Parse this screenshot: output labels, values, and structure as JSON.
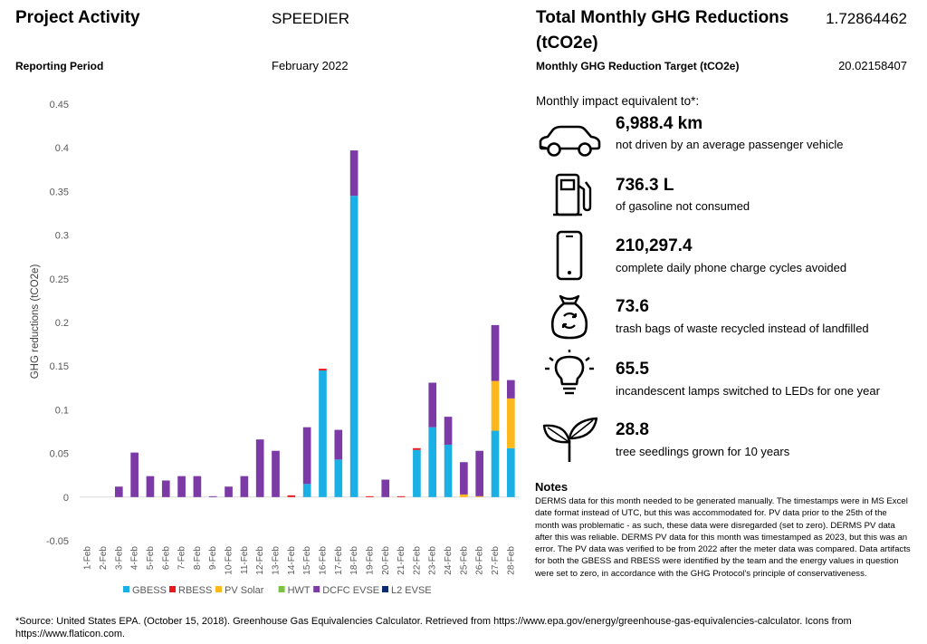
{
  "header": {
    "project_activity_label": "Project Activity",
    "project_activity_value": "SPEEDIER",
    "reporting_period_label": "Reporting Period",
    "reporting_period_value": "February 2022",
    "ghg_title_line1": "Total Monthly GHG Reductions",
    "ghg_title_line2": "(tCO2e)",
    "ghg_total": "1.72864462",
    "target_label": "Monthly GHG Reduction Target (tCO2e)",
    "target_value": "20.02158407"
  },
  "equivalents": {
    "heading": "Monthly impact equivalent to*:",
    "items": [
      {
        "icon": "car-icon",
        "value": "6,988.4 km",
        "desc": "not driven by an average passenger vehicle"
      },
      {
        "icon": "fuel-pump-icon",
        "value": "736.3 L",
        "desc": "of gasoline not consumed"
      },
      {
        "icon": "smartphone-icon",
        "value": "210,297.4",
        "desc": "complete daily phone charge cycles avoided"
      },
      {
        "icon": "recycle-bag-icon",
        "value": "73.6",
        "desc": "trash bags of waste recycled instead of landfilled"
      },
      {
        "icon": "lightbulb-icon",
        "value": "65.5",
        "desc": "incandescent lamps switched to LEDs for one year"
      },
      {
        "icon": "seedling-icon",
        "value": "28.8",
        "desc": "tree seedlings grown for 10 years"
      }
    ]
  },
  "notes": {
    "title": "Notes",
    "body": "DERMS data for this month needed to be generated manually. The timestamps were in MS Excel date format instead of UTC, but this was accommodated for. PV data prior to the 25th of the month was problematic - as such, these data were disregarded (set to zero). DERMS PV data after this was reliable. DERMS PV data for this month was timestamped as 2023, but this was an error. The PV data was verified to be from 2022 after the meter data was compared. Data artifacts for both the GBESS and RBESS were identified by the team and the energy values in question were set to zero, in accordance with the GHG Protocol's principle of conservativeness."
  },
  "footer": "*Source: United States EPA. (October 15, 2018). Greenhouse Gas Equivalencies Calculator. Retrieved from https://www.epa.gov/energy/greenhouse-gas-equivalencies-calculator. Icons from https://www.flaticon.com.",
  "chart_data": {
    "type": "bar",
    "stacked": true,
    "ylabel": "GHG reductions (tCO2e)",
    "ylim": [
      -0.05,
      0.45
    ],
    "yticks": [
      "-0.05",
      "0",
      "0.05",
      "0.1",
      "0.15",
      "0.2",
      "0.25",
      "0.3",
      "0.35",
      "0.4",
      "0.45"
    ],
    "grid": false,
    "legend_position": "bottom",
    "categories": [
      "1-Feb",
      "2-Feb",
      "3-Feb",
      "4-Feb",
      "5-Feb",
      "6-Feb",
      "7-Feb",
      "8-Feb",
      "9-Feb",
      "10-Feb",
      "11-Feb",
      "12-Feb",
      "13-Feb",
      "14-Feb",
      "15-Feb",
      "16-Feb",
      "17-Feb",
      "18-Feb",
      "19-Feb",
      "20-Feb",
      "21-Feb",
      "22-Feb",
      "23-Feb",
      "24-Feb",
      "25-Feb",
      "26-Feb",
      "27-Feb",
      "28-Feb"
    ],
    "series": [
      {
        "name": "GBESS",
        "color": "#1AB0E6",
        "values": [
          0,
          0,
          0,
          0,
          0,
          0,
          0,
          0,
          0,
          0,
          0,
          0,
          0,
          0,
          0.015,
          0.145,
          0.043,
          0.345,
          0,
          0,
          0,
          0.054,
          0.08,
          0.06,
          0,
          0,
          0.076,
          0.056
        ]
      },
      {
        "name": "RBESS",
        "color": "#E8191D",
        "values": [
          0,
          0,
          0,
          0,
          0,
          0,
          0,
          0,
          0,
          0,
          0,
          0,
          0,
          0.002,
          0,
          0.002,
          0,
          0,
          0.001,
          0,
          0.001,
          0.002,
          0,
          0,
          0,
          0,
          0,
          0
        ]
      },
      {
        "name": "PV Solar",
        "color": "#FFB81C",
        "values": [
          0,
          0,
          0,
          0,
          0,
          0,
          0,
          0,
          0,
          0,
          0,
          0,
          0,
          0,
          0,
          0,
          0,
          0,
          0,
          0,
          0,
          0,
          0,
          0,
          0.003,
          0.001,
          0.057,
          0.057
        ]
      },
      {
        "name": "HWT",
        "color": "#7CC243",
        "values": [
          0,
          0,
          0,
          0,
          0,
          0,
          0,
          0,
          0,
          0,
          0,
          0,
          0,
          0,
          0,
          0,
          0,
          0,
          0,
          0,
          0,
          0,
          0,
          0,
          0,
          0,
          0,
          0
        ]
      },
      {
        "name": "DCFC EVSE",
        "color": "#7B3AA6",
        "values": [
          0,
          0,
          0.012,
          0.051,
          0.024,
          0.019,
          0.024,
          0.024,
          0.001,
          0.012,
          0.024,
          0.066,
          0.053,
          0,
          0.065,
          0,
          0.034,
          0.052,
          0,
          0.02,
          0,
          0,
          0.051,
          0.032,
          0.037,
          0.052,
          0.064,
          0.021
        ]
      },
      {
        "name": "L2 EVSE",
        "color": "#0B2A6F",
        "values": [
          0,
          0,
          0,
          0,
          0,
          0,
          0,
          0,
          0,
          0,
          0,
          0,
          0,
          0,
          0,
          0,
          0,
          0,
          0,
          0,
          0,
          0,
          0,
          0,
          0,
          0,
          0,
          0
        ]
      }
    ]
  }
}
